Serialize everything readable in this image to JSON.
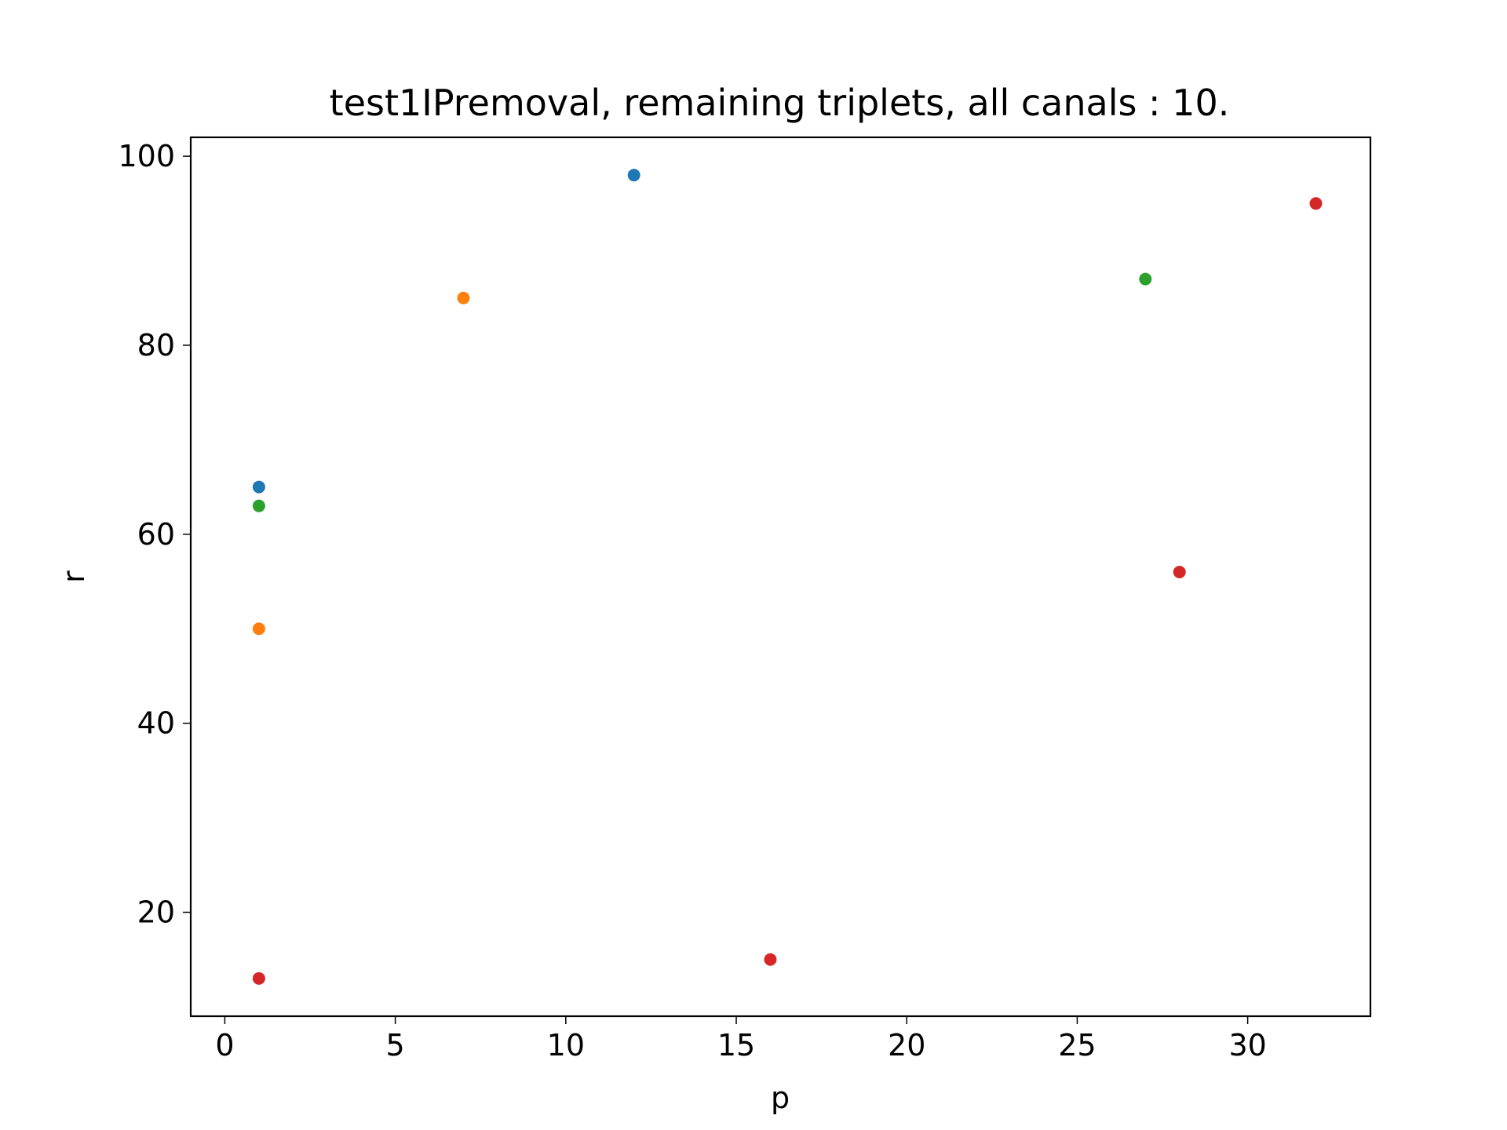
{
  "chart_data": {
    "type": "scatter",
    "title": "test1IPremoval, remaining triplets, all canals : 10.",
    "xlabel": "p",
    "ylabel": "r",
    "xlim": [
      -1,
      33.6
    ],
    "ylim": [
      9,
      102
    ],
    "xticks": [
      0,
      5,
      10,
      15,
      20,
      25,
      30
    ],
    "xtick_labels": [
      "0",
      "5",
      "10",
      "15",
      "20",
      "25",
      "30"
    ],
    "yticks": [
      20,
      40,
      60,
      80,
      100
    ],
    "ytick_labels": [
      "20",
      "40",
      "60",
      "80",
      "100"
    ],
    "grid": false,
    "legend": "none",
    "series": [
      {
        "color": "#1f77b4",
        "points": [
          {
            "x": 1,
            "y": 65
          },
          {
            "x": 12,
            "y": 98
          }
        ]
      },
      {
        "color": "#ff7f0e",
        "points": [
          {
            "x": 1,
            "y": 50
          },
          {
            "x": 7,
            "y": 85
          }
        ]
      },
      {
        "color": "#2ca02c",
        "points": [
          {
            "x": 1,
            "y": 63
          },
          {
            "x": 27,
            "y": 87
          }
        ]
      },
      {
        "color": "#d62728",
        "points": [
          {
            "x": 1,
            "y": 13
          },
          {
            "x": 16,
            "y": 15
          },
          {
            "x": 28,
            "y": 56
          },
          {
            "x": 32,
            "y": 95
          }
        ]
      }
    ]
  }
}
